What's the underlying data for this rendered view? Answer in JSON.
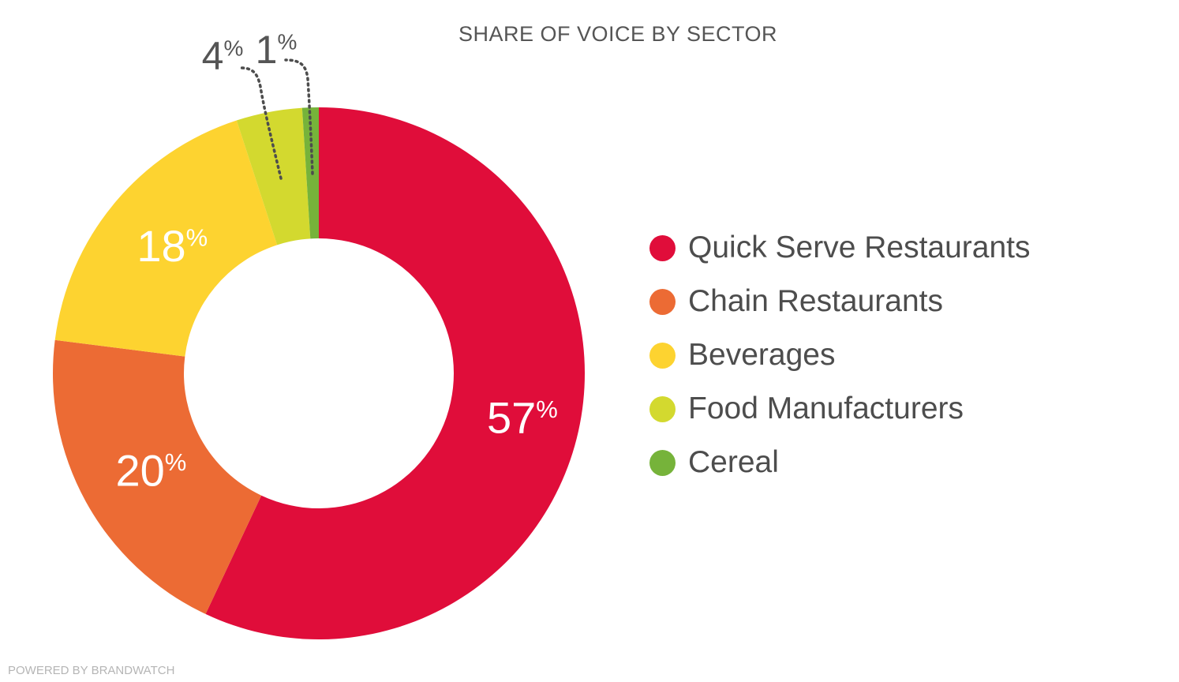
{
  "chart_data": {
    "type": "donut",
    "title": "SHARE OF VOICE BY SECTOR",
    "categories": [
      "Quick Serve Restaurants",
      "Chain Restaurants",
      "Beverages",
      "Food Manufacturers",
      "Cereal"
    ],
    "values": [
      57,
      20,
      18,
      4,
      1
    ],
    "unit": "%",
    "colors": [
      "#e00d3a",
      "#ec6b34",
      "#fdd330",
      "#d3d92f",
      "#76b33a"
    ],
    "label_colors": [
      "#ffffff",
      "#ffffff",
      "#ffffff",
      "#555555",
      "#555555"
    ],
    "legend_position": "right"
  },
  "footer": "POWERED BY BRANDWATCH"
}
